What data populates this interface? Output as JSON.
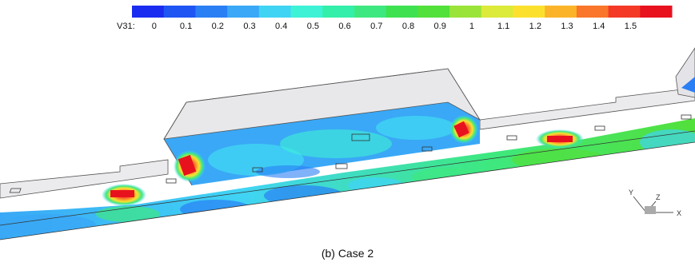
{
  "legend": {
    "variable": "V31:",
    "ticks": [
      "0",
      "0.1",
      "0.2",
      "0.3",
      "0.4",
      "0.5",
      "0.6",
      "0.7",
      "0.8",
      "0.9",
      "1",
      "1.1",
      "1.2",
      "1.3",
      "1.4",
      "1.5"
    ],
    "colors": [
      "#1a2cf0",
      "#1f55f2",
      "#2a7ff5",
      "#3aa8f6",
      "#40d4f4",
      "#3ef2d6",
      "#34efaa",
      "#3ee880",
      "#3ee250",
      "#52e03a",
      "#9ae43a",
      "#dcea3a",
      "#fbe12e",
      "#fbb42a",
      "#f9762a",
      "#f43a26",
      "#e8121f"
    ]
  },
  "axes": {
    "x": "X",
    "y": "Y",
    "z": "Z"
  },
  "caption": "(b)  Case  2"
}
